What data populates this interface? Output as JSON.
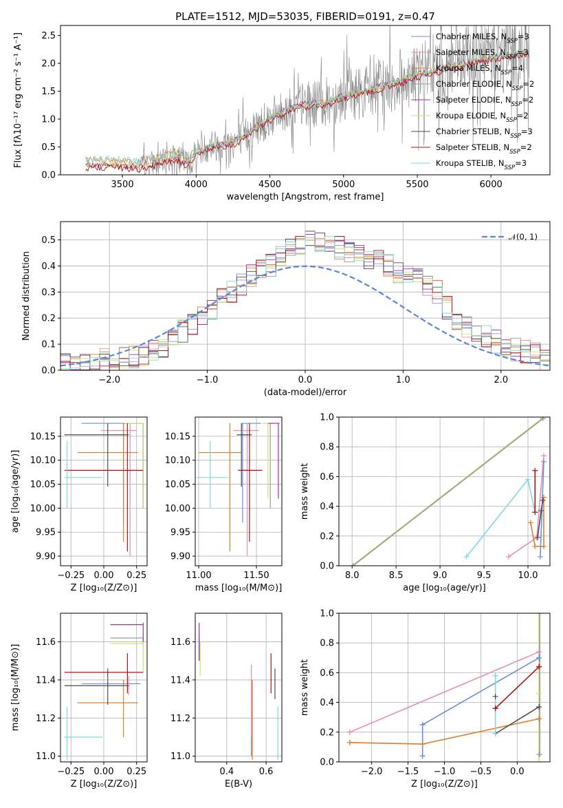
{
  "colors": {
    "chabrier_miles": "#6a8fd6",
    "salpeter_miles": "#e68cb8",
    "kroupa_miles": "#e07b28",
    "chabrier_elodie": "#9a9a9a",
    "salpeter_elodie": "#9b30a8",
    "kroupa_elodie": "#d4e06a",
    "chabrier_stelib": "#4a4a4a",
    "salpeter_stelib": "#b01010",
    "kroupa_stelib": "#80d8dc",
    "normal": "#5b85d6",
    "data": "#808080"
  },
  "chart_data": [
    {
      "id": "spectrum",
      "type": "line",
      "title": "PLATE=1512, MJD=53035, FIBERID=0191, z=0.47",
      "xlabel": "wavelength [Angstrom, rest frame]",
      "ylabel": "Flux [fλ10⁻¹⁷ erg cm⁻² s⁻¹ A⁻¹]",
      "xlim": [
        3080,
        6400
      ],
      "ylim": [
        0,
        2.68
      ],
      "xticks": [
        3500,
        4000,
        4500,
        5000,
        5500,
        6000
      ],
      "yticks": [
        0.0,
        0.5,
        1.0,
        1.5,
        2.0,
        2.5
      ],
      "legend_position": "upper-right",
      "legend": [
        {
          "label": "Chabrier MILES, N",
          "sub": "SSP",
          "suffix": "=3",
          "color_key": "chabrier_miles"
        },
        {
          "label": "Salpeter MILES, N",
          "sub": "SSP",
          "suffix": "=3",
          "color_key": "salpeter_miles"
        },
        {
          "label": "Kroupa MILES, N",
          "sub": "SSP",
          "suffix": "=4",
          "color_key": "kroupa_miles"
        },
        {
          "label": "Chabrier ELODIE, N",
          "sub": "SSP",
          "suffix": "=2",
          "color_key": "chabrier_elodie"
        },
        {
          "label": "Salpeter ELODIE, N",
          "sub": "SSP",
          "suffix": "=2",
          "color_key": "salpeter_elodie"
        },
        {
          "label": "Kroupa ELODIE, N",
          "sub": "SSP",
          "suffix": "=2",
          "color_key": "kroupa_elodie"
        },
        {
          "label": "Chabrier STELIB, N",
          "sub": "SSP",
          "suffix": "=3",
          "color_key": "chabrier_stelib"
        },
        {
          "label": "Salpeter STELIB, N",
          "sub": "SSP",
          "suffix": "=2",
          "color_key": "salpeter_stelib"
        },
        {
          "label": "Kroupa STELIB, N",
          "sub": "SSP",
          "suffix": "=3",
          "color_key": "kroupa_stelib"
        }
      ],
      "model_trend": [
        [
          3250,
          0.17
        ],
        [
          3400,
          0.18
        ],
        [
          3600,
          0.15
        ],
        [
          3750,
          0.22
        ],
        [
          3850,
          0.32
        ],
        [
          3950,
          0.2
        ],
        [
          4000,
          0.42
        ],
        [
          4100,
          0.52
        ],
        [
          4200,
          0.55
        ],
        [
          4300,
          0.65
        ],
        [
          4400,
          0.85
        ],
        [
          4500,
          1.02
        ],
        [
          4600,
          1.15
        ],
        [
          4700,
          1.25
        ],
        [
          4800,
          1.28
        ],
        [
          4900,
          1.32
        ],
        [
          5000,
          1.42
        ],
        [
          5100,
          1.48
        ],
        [
          5200,
          1.55
        ],
        [
          5300,
          1.62
        ],
        [
          5400,
          1.7
        ],
        [
          5500,
          1.8
        ],
        [
          5600,
          1.85
        ],
        [
          5700,
          1.93
        ],
        [
          5800,
          2.0
        ],
        [
          5900,
          2.05
        ],
        [
          6000,
          2.1
        ],
        [
          6100,
          2.15
        ],
        [
          6250,
          2.2
        ]
      ]
    },
    {
      "id": "residuals",
      "type": "line",
      "xlabel": "(data-model)/error",
      "ylabel": "Normed distribution",
      "xlim": [
        -2.5,
        2.5
      ],
      "ylim": [
        0,
        0.57
      ],
      "xticks": [
        -2,
        -1,
        0,
        1,
        2
      ],
      "yticks": [
        0.0,
        0.1,
        0.2,
        0.3,
        0.4,
        0.5
      ],
      "legend_position": "upper-right",
      "legend": [
        {
          "label": "𝒩(0, 1)",
          "color_key": "normal"
        }
      ],
      "hist_bin_width": 0.1,
      "hist_envelope": [
        0.02,
        0.02,
        0.03,
        0.03,
        0.04,
        0.04,
        0.05,
        0.05,
        0.06,
        0.07,
        0.09,
        0.12,
        0.15,
        0.18,
        0.2,
        0.24,
        0.27,
        0.3,
        0.33,
        0.36,
        0.38,
        0.4,
        0.44,
        0.47,
        0.49,
        0.51,
        0.5,
        0.49,
        0.47,
        0.46,
        0.44,
        0.43,
        0.42,
        0.4,
        0.38,
        0.36,
        0.35,
        0.33,
        0.3,
        0.24,
        0.2,
        0.17,
        0.15,
        0.13,
        0.11,
        0.09,
        0.08,
        0.07,
        0.06,
        0.04
      ]
    },
    {
      "id": "age-vs-Z",
      "type": "scatter",
      "xlabel": "Z [log₁₀(Z/Z⊙)]",
      "ylabel": "age  [log₁₀(age/yr)]",
      "xlim": [
        -0.33,
        0.33
      ],
      "ylim": [
        9.88,
        10.19
      ],
      "xticks": [
        -0.25,
        0.0,
        0.25
      ],
      "xticklabels": [
        "−0.25",
        "0.00",
        "0.25"
      ],
      "yticks": [
        9.9,
        9.95,
        10.0,
        10.05,
        10.1,
        10.15
      ],
      "points": [
        {
          "c": "chabrier_miles",
          "x": 0.15,
          "xl": -0.17,
          "xh": 0.18,
          "y": 10.177,
          "yl": 9.97,
          "yh": 10.177
        },
        {
          "c": "salpeter_miles",
          "x": 0.2,
          "xl": -0.02,
          "xh": 0.25,
          "y": 10.162,
          "yl": 9.9,
          "yh": 10.177
        },
        {
          "c": "kroupa_miles",
          "x": 0.15,
          "xl": -0.2,
          "xh": 0.26,
          "y": 10.116,
          "yl": 9.93,
          "yh": 10.177
        },
        {
          "c": "chabrier_elodie",
          "x": 0.3,
          "xl": 0.18,
          "xh": 0.3,
          "y": 10.177,
          "yl": 10.0,
          "yh": 10.177
        },
        {
          "c": "salpeter_elodie",
          "x": 0.3,
          "xl": 0.16,
          "xh": 0.3,
          "y": 10.177,
          "yl": 10.0,
          "yh": 10.177
        },
        {
          "c": "kroupa_elodie",
          "x": 0.3,
          "xl": 0.16,
          "xh": 0.3,
          "y": 10.177,
          "yl": 10.0,
          "yh": 10.177
        },
        {
          "c": "chabrier_stelib",
          "x": 0.03,
          "xl": -0.3,
          "xh": 0.19,
          "y": 10.153,
          "yl": 10.045,
          "yh": 10.177
        },
        {
          "c": "salpeter_stelib",
          "x": 0.18,
          "xl": -0.3,
          "xh": 0.3,
          "y": 10.079,
          "yl": 9.91,
          "yh": 10.177
        },
        {
          "c": "kroupa_stelib",
          "x": -0.28,
          "xl": -0.3,
          "xh": -0.01,
          "y": 10.064,
          "yl": 10.0,
          "yh": 10.14
        }
      ]
    },
    {
      "id": "age-vs-mass",
      "type": "scatter",
      "xlabel": "mass [log₁₀(M/M⊙)]",
      "ylabel": "",
      "xlim": [
        10.97,
        11.72
      ],
      "ylim": [
        9.88,
        10.19
      ],
      "xticks": [
        11.0,
        11.5
      ],
      "yticks": [
        9.9,
        9.95,
        10.0,
        10.05,
        10.1,
        10.15
      ],
      "points": [
        {
          "c": "chabrier_miles",
          "x": 11.38,
          "xl": 11.37,
          "xh": 11.54,
          "y": 10.177,
          "yl": 9.97,
          "yh": 10.177
        },
        {
          "c": "salpeter_miles",
          "x": 11.42,
          "xl": 11.3,
          "xh": 11.52,
          "y": 10.162,
          "yl": 9.9,
          "yh": 10.177
        },
        {
          "c": "kroupa_miles",
          "x": 11.27,
          "xl": 11.0,
          "xh": 11.37,
          "y": 10.116,
          "yl": 9.91,
          "yh": 10.177
        },
        {
          "c": "chabrier_elodie",
          "x": 11.62,
          "xl": 11.6,
          "xh": 11.65,
          "y": 10.177,
          "yl": 10.0,
          "yh": 10.177
        },
        {
          "c": "salpeter_elodie",
          "x": 11.69,
          "xl": 11.6,
          "xh": 11.7,
          "y": 10.177,
          "yl": 10.02,
          "yh": 10.177
        },
        {
          "c": "kroupa_elodie",
          "x": 11.6,
          "xl": 11.55,
          "xh": 11.6,
          "y": 10.177,
          "yl": 10.02,
          "yh": 10.177
        },
        {
          "c": "chabrier_stelib",
          "x": 11.37,
          "xl": 11.33,
          "xh": 11.46,
          "y": 10.153,
          "yl": 10.045,
          "yh": 10.177
        },
        {
          "c": "salpeter_stelib",
          "x": 11.44,
          "xl": 11.34,
          "xh": 11.55,
          "y": 10.079,
          "yl": 9.93,
          "yh": 10.177
        },
        {
          "c": "kroupa_stelib",
          "x": 11.1,
          "xl": 10.98,
          "xh": 11.26,
          "y": 10.064,
          "yl": 10.0,
          "yh": 10.14
        }
      ]
    },
    {
      "id": "massweight-vs-age",
      "type": "line",
      "xlabel": "age  [log₁₀(age/yr)]",
      "ylabel": "mass weight",
      "xlim": [
        7.85,
        10.25
      ],
      "ylim": [
        0,
        1
      ],
      "xticks": [
        8.0,
        8.5,
        9.0,
        9.5,
        10.0
      ],
      "yticks": [
        0.0,
        0.2,
        0.4,
        0.6,
        0.8,
        1.0
      ],
      "series": [
        {
          "c": "kroupa_elodie",
          "x": [
            8.0,
            10.18
          ],
          "y": [
            0.0,
            1.0
          ]
        },
        {
          "c": "chabrier_elodie",
          "x": [
            8.01,
            10.17
          ],
          "y": [
            0.0,
            0.99
          ]
        },
        {
          "c": "kroupa_stelib",
          "x": [
            9.3,
            10.0,
            10.08
          ],
          "y": [
            0.06,
            0.58,
            0.36
          ]
        },
        {
          "c": "salpeter_miles",
          "x": [
            9.78,
            10.1,
            10.18
          ],
          "y": [
            0.06,
            0.19,
            0.74
          ]
        },
        {
          "c": "kroupa_miles",
          "x": [
            10.03,
            10.08,
            10.18,
            10.18
          ],
          "y": [
            0.29,
            0.13,
            0.13,
            0.46
          ]
        },
        {
          "c": "chabrier_miles",
          "x": [
            10.14,
            10.18
          ],
          "y": [
            0.06,
            0.7
          ]
        },
        {
          "c": "salpeter_stelib",
          "x": [
            10.08,
            10.08
          ],
          "y": [
            0.36,
            0.64
          ]
        },
        {
          "c": "chabrier_stelib",
          "x": [
            10.11,
            10.15,
            10.17
          ],
          "y": [
            0.19,
            0.37,
            0.44
          ]
        }
      ]
    },
    {
      "id": "mass-vs-Z",
      "type": "scatter",
      "xlabel": "Z [log₁₀(Z/Z⊙)]",
      "ylabel": "mass [log₁₀(M/M⊙)]",
      "xlim": [
        -0.33,
        0.33
      ],
      "ylim": [
        10.97,
        11.75
      ],
      "xticks": [
        -0.25,
        0.0,
        0.25
      ],
      "xticklabels": [
        "−0.25",
        "0.00",
        "0.25"
      ],
      "yticks": [
        11.0,
        11.2,
        11.4,
        11.6
      ],
      "points": [
        {
          "c": "chabrier_miles",
          "x": 0.15,
          "xl": -0.17,
          "xh": 0.28,
          "y": 11.38,
          "yl": 11.37,
          "yh": 11.4
        },
        {
          "c": "salpeter_miles",
          "x": 0.19,
          "xl": 0.19,
          "xh": 0.19,
          "y": 11.4,
          "yl": 11.32,
          "yh": 11.42
        },
        {
          "c": "kroupa_miles",
          "x": 0.15,
          "xl": -0.2,
          "xh": 0.26,
          "y": 11.28,
          "yl": 11.1,
          "yh": 11.4
        },
        {
          "c": "chabrier_elodie",
          "x": 0.3,
          "xl": 0.05,
          "xh": 0.3,
          "y": 11.62,
          "yl": 11.58,
          "yh": 11.62
        },
        {
          "c": "salpeter_elodie",
          "x": 0.3,
          "xl": 0.05,
          "xh": 0.3,
          "y": 11.69,
          "yl": 11.59,
          "yh": 11.7
        },
        {
          "c": "kroupa_elodie",
          "x": 0.3,
          "xl": 0.05,
          "xh": 0.3,
          "y": 11.59,
          "yl": 11.44,
          "yh": 11.6
        },
        {
          "c": "chabrier_stelib",
          "x": 0.03,
          "xl": -0.3,
          "xh": 0.19,
          "y": 11.37,
          "yl": 11.27,
          "yh": 11.46
        },
        {
          "c": "salpeter_stelib",
          "x": 0.18,
          "xl": -0.3,
          "xh": 0.3,
          "y": 11.44,
          "yl": 11.33,
          "yh": 11.54
        },
        {
          "c": "kroupa_stelib",
          "x": -0.28,
          "xl": -0.3,
          "xh": -0.01,
          "y": 11.1,
          "yl": 10.98,
          "yh": 11.26
        }
      ]
    },
    {
      "id": "mass-vs-EBV",
      "type": "scatter",
      "xlabel": "E(B-V)",
      "ylabel": "",
      "xlim": [
        0.24,
        0.68
      ],
      "ylim": [
        10.97,
        11.75
      ],
      "xticks": [
        0.4,
        0.6
      ],
      "yticks": [
        11.0,
        11.2,
        11.4,
        11.6
      ],
      "points": [
        {
          "c": "chabrier_miles",
          "x": 0.525,
          "y": 11.38,
          "yl": 11.0,
          "yh": 11.4
        },
        {
          "c": "salpeter_miles",
          "x": 0.525,
          "y": 11.4,
          "yl": 11.1,
          "yh": 11.48
        },
        {
          "c": "kroupa_miles",
          "x": 0.53,
          "y": 11.28,
          "yl": 10.98,
          "yh": 11.4
        },
        {
          "c": "chabrier_elodie",
          "x": 0.26,
          "y": 11.62,
          "yl": 11.5,
          "yh": 11.65
        },
        {
          "c": "salpeter_elodie",
          "x": 0.26,
          "y": 11.62,
          "yl": 11.5,
          "yh": 11.7
        },
        {
          "c": "kroupa_elodie",
          "x": 0.265,
          "y": 11.58,
          "yl": 11.42,
          "yh": 11.6
        },
        {
          "c": "chabrier_stelib",
          "x": 0.645,
          "y": 11.37,
          "yl": 11.3,
          "yh": 11.46
        },
        {
          "c": "salpeter_stelib",
          "x": 0.625,
          "y": 11.44,
          "yl": 11.33,
          "yh": 11.54
        },
        {
          "c": "kroupa_stelib",
          "x": 0.66,
          "y": 11.1,
          "yl": 10.98,
          "yh": 11.26
        }
      ]
    },
    {
      "id": "massweight-vs-Z",
      "type": "line",
      "xlabel": "Z [log₁₀(Z/Z⊙)]",
      "ylabel": "mass weight",
      "xlim": [
        -2.45,
        0.45
      ],
      "ylim": [
        0,
        1
      ],
      "xticks": [
        -2.0,
        -1.5,
        -1.0,
        -0.5,
        0.0
      ],
      "xticklabels": [
        "−2.0",
        "−1.5",
        "−1.0",
        "−0.5",
        "0.0"
      ],
      "yticks": [
        0.0,
        0.2,
        0.4,
        0.6,
        0.8,
        1.0
      ],
      "series": [
        {
          "c": "salpeter_miles",
          "x": [
            -2.3,
            0.3
          ],
          "y": [
            0.2,
            0.74
          ]
        },
        {
          "c": "kroupa_miles",
          "x": [
            -2.3,
            -1.3,
            0.3
          ],
          "y": [
            0.13,
            0.12,
            0.29
          ]
        },
        {
          "c": "chabrier_miles",
          "x": [
            -1.3,
            -1.3,
            0.3
          ],
          "y": [
            0.04,
            0.25,
            0.7
          ]
        },
        {
          "c": "kroupa_stelib",
          "x": [
            -0.3,
            -0.3
          ],
          "y": [
            0.36,
            0.58
          ]
        },
        {
          "c": "kroupa_stelib",
          "x": [
            -0.3,
            -0.3
          ],
          "y": [
            0.19,
            0.36
          ]
        },
        {
          "c": "salpeter_stelib",
          "x": [
            -0.3,
            -0.3,
            0.3
          ],
          "y": [
            0.36,
            0.36,
            0.64
          ]
        },
        {
          "c": "chabrier_stelib",
          "x": [
            -0.3,
            -0.3,
            0.3
          ],
          "y": [
            0.19,
            0.19,
            0.37
          ]
        },
        {
          "c": "kroupa_elodie",
          "x": [
            0.3,
            0.3
          ],
          "y": [
            0.0,
            1.0
          ]
        },
        {
          "c": "chabrier_elodie",
          "x": [
            0.31,
            0.31
          ],
          "y": [
            0.05,
            1.0
          ]
        }
      ],
      "markers": [
        {
          "c": "salpeter_miles",
          "x": -2.3,
          "y": 0.2
        },
        {
          "c": "salpeter_miles",
          "x": 0.3,
          "y": 0.74
        },
        {
          "c": "kroupa_miles",
          "x": -2.3,
          "y": 0.13
        },
        {
          "c": "kroupa_miles",
          "x": -1.3,
          "y": 0.12
        },
        {
          "c": "kroupa_miles",
          "x": 0.3,
          "y": 0.29
        },
        {
          "c": "chabrier_miles",
          "x": -1.3,
          "y": 0.04
        },
        {
          "c": "chabrier_miles",
          "x": -1.3,
          "y": 0.25
        },
        {
          "c": "chabrier_miles",
          "x": 0.3,
          "y": 0.7
        },
        {
          "c": "kroupa_stelib",
          "x": -0.3,
          "y": 0.58
        },
        {
          "c": "kroupa_stelib",
          "x": -0.3,
          "y": 0.19
        },
        {
          "c": "chabrier_stelib",
          "x": -0.3,
          "y": 0.44
        },
        {
          "c": "chabrier_stelib",
          "x": 0.3,
          "y": 0.37
        },
        {
          "c": "salpeter_stelib",
          "x": 0.3,
          "y": 0.64
        },
        {
          "c": "kroupa_elodie",
          "x": 0.3,
          "y": 0.46
        },
        {
          "c": "chabrier_elodie",
          "x": 0.3,
          "y": 0.05
        }
      ]
    }
  ]
}
